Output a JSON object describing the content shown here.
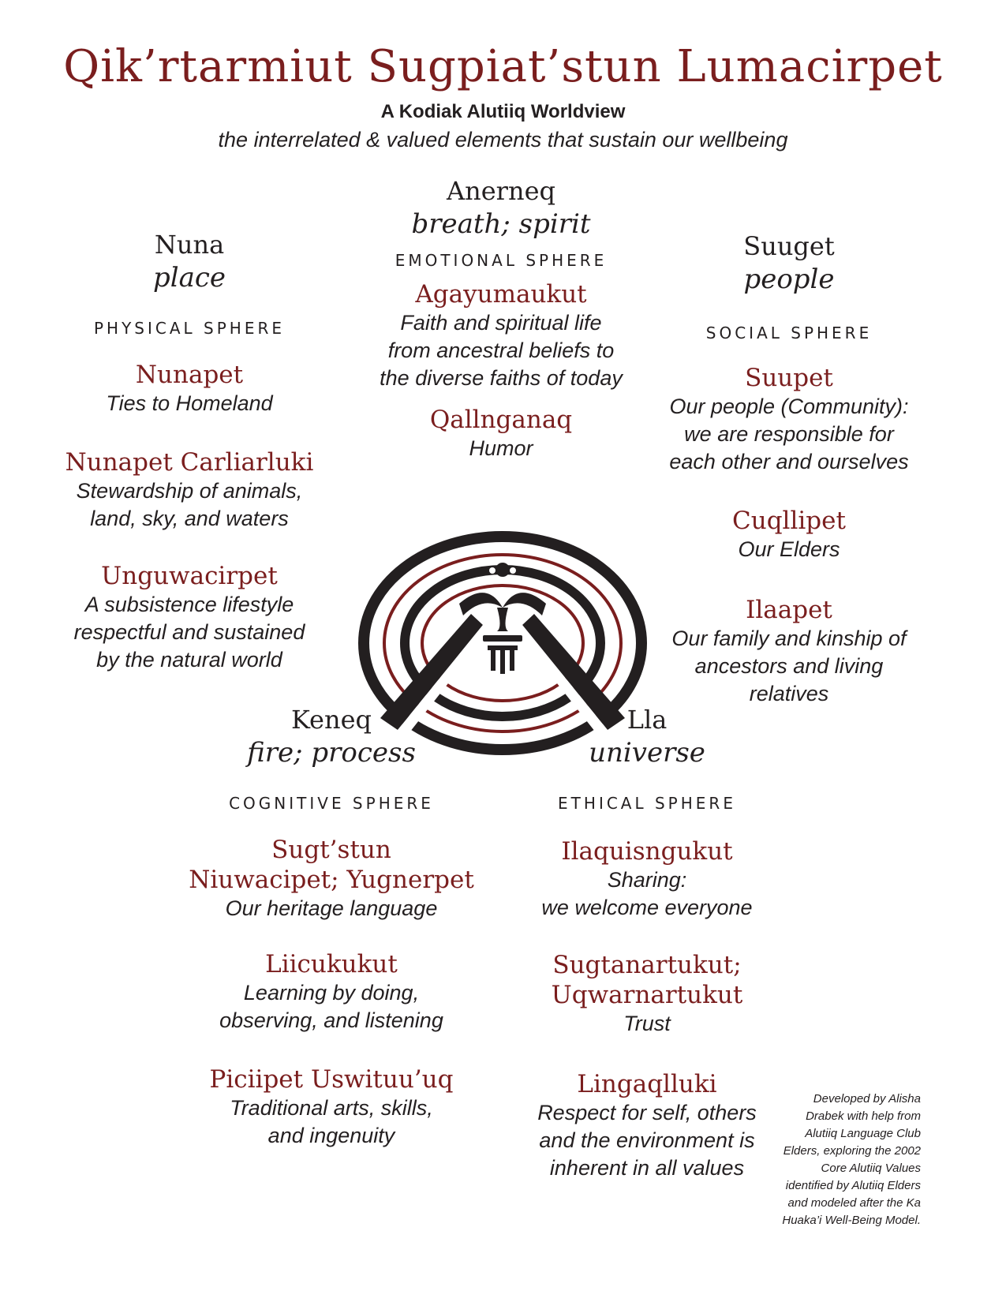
{
  "title": "Qik’rtarmiut Sugpiat’stun Lumacirpet",
  "subtitle": "A Kodiak Alutiiq Worldview",
  "tagline": "the interrelated & valued elements that sustain our wellbeing",
  "spheres": {
    "physical": {
      "name": "Nuna",
      "gloss": "place",
      "sphere": "PHYSICAL SPHERE",
      "values": [
        {
          "name": "Nunapet",
          "desc": [
            "Ties to Homeland"
          ]
        },
        {
          "name": "Nunapet Carliarluki",
          "desc": [
            "Stewardship of animals,",
            "land, sky, and waters"
          ]
        },
        {
          "name": "Unguwacirpet",
          "desc": [
            "A subsistence lifestyle",
            "respectful and sustained",
            "by the natural world"
          ]
        }
      ]
    },
    "emotional": {
      "name": "Anerneq",
      "gloss": "breath; spirit",
      "sphere": "EMOTIONAL SPHERE",
      "values": [
        {
          "name": "Agayumaukut",
          "desc": [
            "Faith and spiritual life",
            "from ancestral beliefs to",
            "the diverse faiths of today"
          ]
        },
        {
          "name": "Qallnganaq",
          "desc": [
            "Humor"
          ]
        }
      ]
    },
    "social": {
      "name": "Suuget",
      "gloss": "people",
      "sphere": "SOCIAL SPHERE",
      "values": [
        {
          "name": "Suupet",
          "desc": [
            "Our people (Community):",
            "we are responsible for",
            "each other and ourselves"
          ]
        },
        {
          "name": "Cuqllipet",
          "desc": [
            "Our Elders"
          ]
        },
        {
          "name": "Ilaapet",
          "desc": [
            "Our family and kinship of",
            "ancestors and living",
            "relatives"
          ]
        }
      ]
    },
    "cognitive": {
      "name": "Keneq",
      "gloss": "fire; process",
      "sphere": "COGNITIVE SPHERE",
      "values": [
        {
          "name": [
            "Sugt’stun",
            "Niuwacipet; Yugnerpet"
          ],
          "desc": [
            "Our heritage language"
          ]
        },
        {
          "name": [
            "Liicukukut"
          ],
          "desc": [
            "Learning by doing,",
            "observing, and listening"
          ]
        },
        {
          "name": [
            "Piciipet Uswituu’uq"
          ],
          "desc": [
            "Traditional arts, skills,",
            "and ingenuity"
          ]
        }
      ]
    },
    "ethical": {
      "name": "Lla",
      "gloss": "universe",
      "sphere": "ETHICAL SPHERE",
      "values": [
        {
          "name": [
            "Ilaquisngukut"
          ],
          "desc": [
            "Sharing:",
            "we welcome everyone"
          ]
        },
        {
          "name": [
            "Sugtanartukut;",
            "Uqwarnartukut"
          ],
          "desc": [
            "Trust"
          ]
        },
        {
          "name": [
            "Lingaqlluki"
          ],
          "desc": [
            "Respect for self, others",
            "and the environment is",
            "inherent in all values"
          ]
        }
      ]
    }
  },
  "credit": [
    "Developed by Alisha",
    "Drabek with help from",
    "Alutiiq Language Club",
    "Elders, exploring the 2002",
    "Core Alutiiq Values",
    "identified by Alutiiq Elders",
    "and modeled after the Ka",
    "Huaka’i Well-Being Model."
  ],
  "colors": {
    "accent": "#7a1e1e",
    "text": "#231f20"
  },
  "emblem_icon": "alutiiq-face-emblem-icon"
}
